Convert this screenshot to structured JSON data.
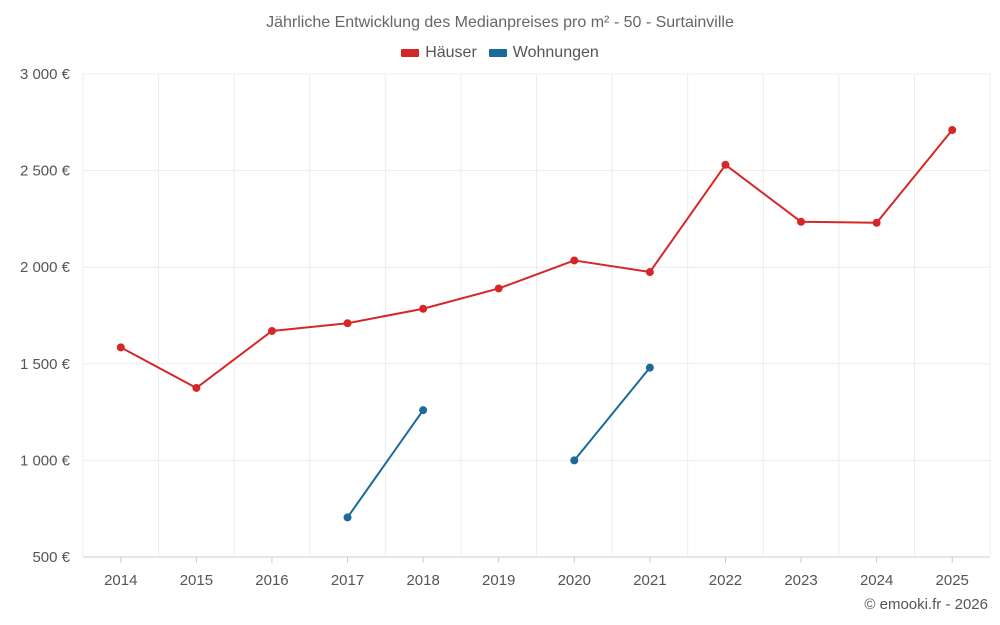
{
  "chart_data": {
    "type": "line",
    "title": "Jährliche Entwicklung des Medianpreises pro m² - 50 - Surtainville",
    "categories": [
      "2014",
      "2015",
      "2016",
      "2017",
      "2018",
      "2019",
      "2020",
      "2021",
      "2022",
      "2023",
      "2024",
      "2025"
    ],
    "y_ticks": [
      "500 €",
      "1 000 €",
      "1 500 €",
      "2 000 €",
      "2 500 €",
      "3 000 €"
    ],
    "ylim": [
      500,
      3000
    ],
    "grid": true,
    "legend_position": "top-center",
    "series": [
      {
        "name": "Häuser",
        "color": "#d62728",
        "values": [
          1585,
          1375,
          1670,
          1710,
          1785,
          1890,
          2035,
          1975,
          2530,
          2235,
          2230,
          2710
        ]
      },
      {
        "name": "Wohnungen",
        "color": "#1a6a9a",
        "values": [
          null,
          null,
          null,
          705,
          1260,
          null,
          1000,
          1480,
          null,
          null,
          null,
          null
        ]
      }
    ]
  },
  "footer": {
    "copyright": "© emooki.fr - 2026"
  }
}
